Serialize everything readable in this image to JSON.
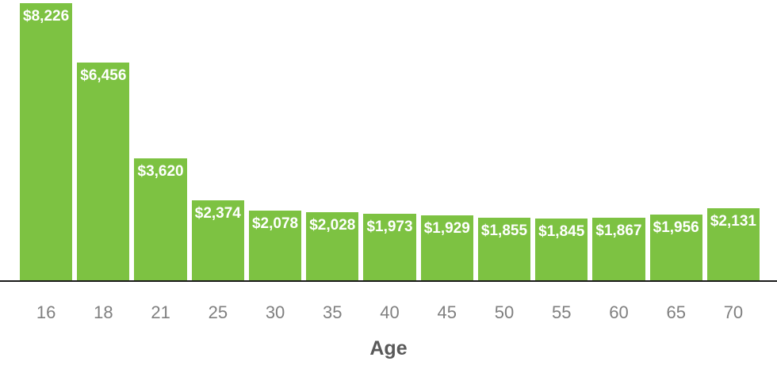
{
  "chart_data": {
    "type": "bar",
    "xlabel": "Age",
    "categories": [
      "16",
      "18",
      "21",
      "25",
      "30",
      "35",
      "40",
      "45",
      "50",
      "55",
      "60",
      "65",
      "70"
    ],
    "values": [
      8226,
      6456,
      3620,
      2374,
      2078,
      2028,
      1973,
      1929,
      1855,
      1845,
      1867,
      1956,
      2131
    ],
    "value_labels": [
      "$8,226",
      "$6,456",
      "$3,620",
      "$2,374",
      "$2,078",
      "$2,028",
      "$1,973",
      "$1,929",
      "$1,855",
      "$1,845",
      "$1,867",
      "$1,956",
      "$2,131"
    ],
    "ylim": [
      0,
      8226
    ],
    "grid": false,
    "legend": "none",
    "value_label_position": "inside-top",
    "colors": {
      "bar": "#7DC242",
      "value_label": "#FFFFFF",
      "tick_label": "#7F7F7F",
      "axis_title": "#595959",
      "axis_line": "#1A1A1A",
      "background": "#FFFFFF"
    }
  }
}
